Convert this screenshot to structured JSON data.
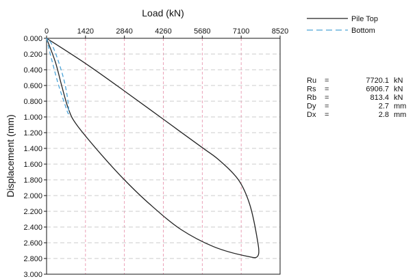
{
  "chart_data": {
    "type": "line",
    "xlabel": "Load (kN)",
    "ylabel": "Displacement (mm)",
    "x_ticks": [
      "0",
      "1420",
      "2840",
      "4260",
      "5680",
      "7100",
      "8520"
    ],
    "y_ticks": [
      "0.000",
      "0.200",
      "0.400",
      "0.600",
      "0.800",
      "1.000",
      "1.200",
      "1.400",
      "1.600",
      "1.800",
      "2.000",
      "2.200",
      "2.400",
      "2.600",
      "2.800",
      "3.000"
    ],
    "xlim": [
      0,
      8520
    ],
    "ylim": [
      0,
      3.0
    ],
    "x_axis_position": "top",
    "y_axis_inverted": true,
    "grid": true,
    "legend_position": "top-right",
    "series": [
      {
        "name": "Pile Top",
        "color": "#222222",
        "style": "solid",
        "points": [
          [
            0,
            0
          ],
          [
            320,
            0.3
          ],
          [
            550,
            0.6
          ],
          [
            800,
            0.9
          ],
          [
            1100,
            1.1
          ],
          [
            2000,
            1.48
          ],
          [
            2840,
            1.8
          ],
          [
            3800,
            2.12
          ],
          [
            4900,
            2.43
          ],
          [
            6100,
            2.65
          ],
          [
            7300,
            2.77
          ],
          [
            7720,
            2.76
          ],
          [
            7660,
            2.5
          ],
          [
            7400,
            2.1
          ],
          [
            7000,
            1.8
          ],
          [
            6300,
            1.55
          ],
          [
            5680,
            1.39
          ],
          [
            4260,
            1.03
          ],
          [
            2840,
            0.67
          ],
          [
            1420,
            0.32
          ],
          [
            0,
            0
          ]
        ]
      },
      {
        "name": "Bottom",
        "color": "#4aa3d8",
        "style": "dashed",
        "points": [
          [
            0,
            0
          ],
          [
            150,
            0.22
          ],
          [
            400,
            0.55
          ],
          [
            650,
            0.82
          ],
          [
            800,
            0.96
          ],
          [
            780,
            0.8
          ],
          [
            650,
            0.55
          ],
          [
            420,
            0.28
          ],
          [
            180,
            0.07
          ],
          [
            0,
            0
          ]
        ]
      }
    ],
    "results": [
      {
        "label": "Ru",
        "eq": "=",
        "value": "7720.1",
        "unit": "kN"
      },
      {
        "label": "Rs",
        "eq": "=",
        "value": "6906.7",
        "unit": "kN"
      },
      {
        "label": "Rb",
        "eq": "=",
        "value": "813.4",
        "unit": "kN"
      },
      {
        "label": "Dy",
        "eq": "=",
        "value": "2.7",
        "unit": "mm"
      },
      {
        "label": "Dx",
        "eq": "=",
        "value": "2.8",
        "unit": "mm"
      }
    ]
  }
}
